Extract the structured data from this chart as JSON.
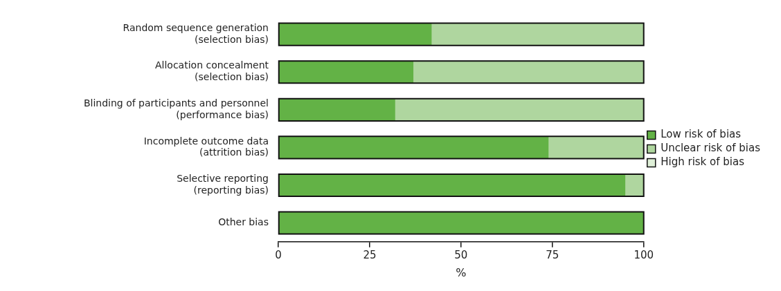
{
  "chart_data": {
    "type": "bar",
    "orientation": "horizontal",
    "stacked": true,
    "xlabel": "%",
    "categories": [
      "Random sequence generation (selection bias)",
      "Allocation concealment (selection bias)",
      "Blinding of participants and personnel (performance bias)",
      "Incomplete outcome data (attrition bias)",
      "Selective reporting (reporting bias)",
      "Other bias"
    ],
    "series": [
      {
        "name": "Low risk of bias",
        "color": "#63b246",
        "values": [
          42,
          37,
          32,
          74,
          95,
          100
        ]
      },
      {
        "name": "Unclear risk of bias",
        "color": "#afd69f",
        "values": [
          58,
          63,
          68,
          26,
          5,
          0
        ]
      },
      {
        "name": "High risk of bias",
        "color": "#dff0d8",
        "values": [
          0,
          0,
          0,
          0,
          0,
          0
        ]
      }
    ],
    "xlim": [
      0,
      100
    ],
    "xticks": [
      0,
      25,
      50,
      75,
      100
    ],
    "grid": false,
    "legend": "right"
  }
}
